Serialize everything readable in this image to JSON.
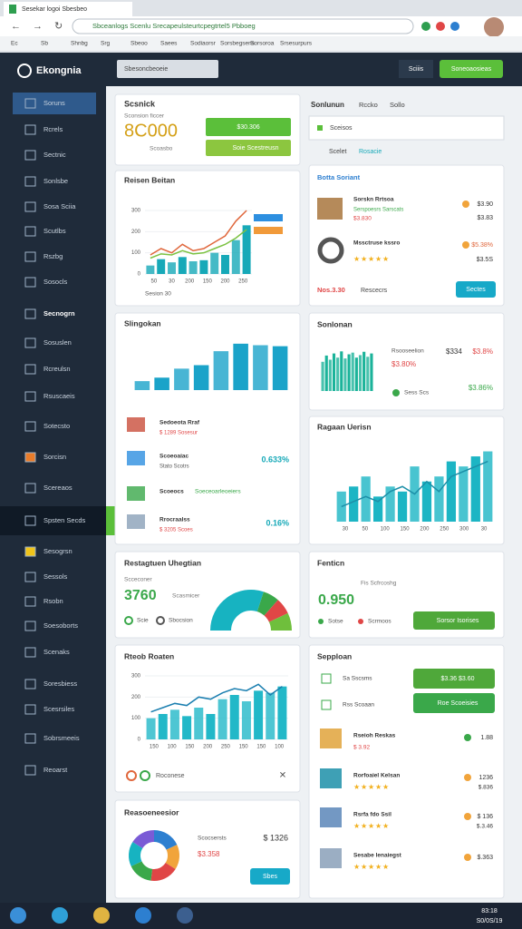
{
  "browser": {
    "tab": "Sesekar logoi Sbesbeo",
    "address": "Sbceanlogs Scenlu Srecapeulsteurtcpegtrtel5 Pbboeg",
    "bookmarks": [
      "Ec",
      "Sb",
      "Shnbg",
      "Srg",
      "Sbeoo",
      "Saees",
      "Sodiaorsr",
      "Sorsbegsens",
      "Sorsoroa",
      "Srsesurpurs"
    ]
  },
  "sidebar": {
    "brand": "Ekongnia",
    "items": [
      "Soruns",
      "Rcrels",
      "Sectnic",
      "Sonlsbe",
      "Sosa Sciia",
      "Scutlbs",
      "Rszbg",
      "Sosocls",
      "Secnogrn",
      "Sosuslen",
      "Rcreulsn",
      "Rsuscaeis",
      "Sotecsto",
      "Sorcisn",
      "Scereaos",
      "Spsten Secds",
      "Sesogrsn",
      "Sessols",
      "Rsobn",
      "Soesoborts",
      "Scenaks",
      "Soresbiess",
      "Scesrsiles",
      "Sobrsmeeis",
      "Reoarst"
    ]
  },
  "header": {
    "search": "Sbesoncbeoeie",
    "buttons": [
      "Sciiis",
      "Soneoaosieas"
    ]
  },
  "summary": {
    "title": "Scsnick",
    "subtitle": "Sconsion ficcer",
    "value": "8C000",
    "note": "Scoasbo",
    "buttons": [
      "$30.306",
      "Soie Scestreusn"
    ]
  },
  "section": {
    "title": "Sonlunun",
    "tabs": [
      "Rccko",
      "Sollo"
    ],
    "dropdown": "Sceisos",
    "filter": "Scelet",
    "link": "Rosacie"
  },
  "trend": {
    "title": "Reisen Beitan",
    "ylim": [
      0,
      330
    ],
    "yticks": [
      0,
      100,
      200,
      300
    ],
    "bars": [
      40,
      70,
      55,
      80,
      60,
      65,
      100,
      90,
      160,
      230
    ],
    "line": [
      90,
      120,
      100,
      140,
      110,
      120,
      150,
      180,
      250,
      300
    ],
    "line2": [
      75,
      95,
      90,
      110,
      95,
      100,
      120,
      140,
      170,
      210
    ],
    "bar_color": "#17a9b8",
    "line_colors": [
      "#e0673c",
      "#7cc242"
    ],
    "xlabels": [
      "50",
      "30",
      "200",
      "150",
      "200",
      "250"
    ],
    "footer": "Sesion 30"
  },
  "best": {
    "title": "Botta Soriant",
    "items": [
      {
        "name": "Sorskn Rrtsoa",
        "sub": "Serspoesrs Sarscats",
        "price": "$3.830",
        "value": "$3.90",
        "change": "$3.83"
      },
      {
        "name": "Mssctruse kssro",
        "value": "$5.38%",
        "change": "$3.5S"
      }
    ],
    "footer": {
      "total": "Nos.3.30",
      "link": "Rescecrs",
      "button": "Sectes"
    }
  },
  "sales": {
    "title": "Slingokan",
    "ylim": [
      0,
      100
    ],
    "bars": [
      18,
      25,
      43,
      50,
      78,
      93,
      90,
      88
    ],
    "bar_color": "#1aa3c9",
    "items": [
      {
        "name": "Sedoeota Rraf",
        "sub": "$ 1289 Sosesur"
      },
      {
        "name": "Scoeoaiac",
        "sub": "Stato Scotrs",
        "value": "0.633%"
      },
      {
        "name": "Scoeocs",
        "sub": "Soeceoarleoeiers"
      },
      {
        "name": "Rrocraalss",
        "sub": "$ 3205 Scoes",
        "value": "0.16%"
      }
    ]
  },
  "mini": {
    "title": "Sonlonan",
    "ylim": [
      0,
      100
    ],
    "bars": [
      70,
      85,
      75,
      90,
      80,
      95,
      78,
      88,
      92,
      80,
      86,
      94,
      82,
      90
    ],
    "bar_color": "#1bb39a",
    "label": "Rsooseelion",
    "values": [
      "$334",
      "$3.8%"
    ],
    "total": "$3.80%",
    "note": "Sess Scs",
    "change": "$3.86%"
  },
  "region": {
    "title": "Ragaan Uerisn",
    "ylim": [
      0,
      150
    ],
    "bars": [
      60,
      70,
      90,
      50,
      70,
      60,
      110,
      80,
      90,
      120,
      110,
      130,
      140
    ],
    "line": [
      30,
      40,
      50,
      40,
      60,
      70,
      55,
      80,
      60,
      90,
      100,
      110,
      120
    ],
    "bar_color": "#1cb5c4",
    "line_color": "#1c8fa8",
    "xlabels": [
      "30",
      "50",
      "100",
      "150",
      "200",
      "250",
      "300",
      "30"
    ]
  },
  "engage": {
    "title": "Restagtuen Uhegtian",
    "label": "Scceconer",
    "value": "3760",
    "note": "Scasmicer",
    "legend": [
      "Scie",
      "Sbocsion"
    ],
    "gauge": [
      60,
      13,
      13,
      14
    ],
    "gauge_colors": [
      "#17b3c1",
      "#3aa84a",
      "#e04646",
      "#6fbf3c"
    ]
  },
  "forecast": {
    "title": "Fenticn",
    "subtitle": "Fis Scfrcoshg",
    "value": "0.950",
    "legend": [
      "Sotse",
      "Scrmoos"
    ],
    "button": "Sorsor Isorises"
  },
  "growth": {
    "title": "Rteob Roaten",
    "ylim": [
      0,
      300
    ],
    "yticks": [
      0,
      100,
      200,
      300
    ],
    "bars": [
      100,
      120,
      140,
      110,
      150,
      120,
      190,
      210,
      180,
      230,
      220,
      250
    ],
    "line": [
      130,
      150,
      170,
      160,
      200,
      190,
      220,
      240,
      230,
      260,
      210,
      250
    ],
    "bar_color": "#22b8c8",
    "line_color": "#1b7fb0",
    "xlabels": [
      "150",
      "100",
      "150",
      "200",
      "250",
      "150",
      "150",
      "100"
    ],
    "footer": "Roconese"
  },
  "supply": {
    "title": "Sepploan",
    "rows": [
      {
        "label": "Sa Sscsms",
        "button": "$3.36 $3.60"
      },
      {
        "label": "Rss Scoaan",
        "button": "Roe Scoeisies"
      }
    ],
    "items": [
      {
        "name": "Rseioh Reskas",
        "sub": "$ 3.92",
        "value": "1.88"
      },
      {
        "name": "Rorfoaiel Kelsan",
        "sub": "$.836",
        "value": "1236"
      },
      {
        "name": "Rsrfa fdo Ssil",
        "sub": "$.3.46",
        "value": "$ 136"
      },
      {
        "name": "Sesabe lenaiegst",
        "value": "$.363"
      }
    ]
  },
  "resources": {
    "title": "Reasoeneesior",
    "label": "Scocsersts",
    "value": "$ 1326",
    "amount": "$3.358",
    "button": "Sbes",
    "donut": [
      18,
      16,
      18,
      16,
      16,
      16
    ],
    "donut_colors": [
      "#2d7fd0",
      "#f1a43b",
      "#e04646",
      "#3aa84a",
      "#17b3c1",
      "#7a5bd6"
    ]
  },
  "taskbar": {
    "time": "83:18",
    "date": "S0/0S/19"
  }
}
